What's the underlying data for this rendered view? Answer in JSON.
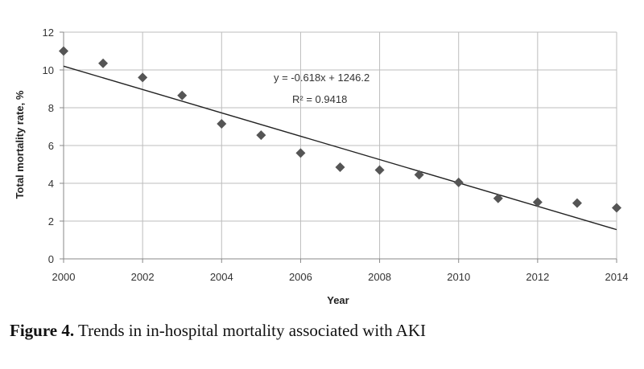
{
  "chart_data": {
    "type": "scatter",
    "title": "",
    "xlabel": "Year",
    "ylabel": "Total mortality rate, %",
    "xlim": [
      2000,
      2014
    ],
    "ylim": [
      0,
      12
    ],
    "x_ticks": [
      2000,
      2002,
      2004,
      2006,
      2008,
      2010,
      2012,
      2014
    ],
    "y_ticks": [
      0,
      2,
      4,
      6,
      8,
      10,
      12
    ],
    "grid": true,
    "series": [
      {
        "x": [
          2000,
          2001,
          2002,
          2003,
          2004,
          2005,
          2006,
          2007,
          2008,
          2009,
          2010,
          2011,
          2012,
          2013,
          2014
        ],
        "y": [
          11.0,
          10.35,
          9.6,
          8.65,
          7.15,
          6.55,
          5.6,
          4.85,
          4.7,
          4.45,
          4.05,
          3.2,
          3.0,
          2.95,
          2.7
        ],
        "marker": "diamond",
        "color": "#555555"
      }
    ],
    "trendline": {
      "slope": -0.618,
      "intercept": 1246.2,
      "equation_label": "y = -0.618x + 1246.2",
      "r2_label": "R² = 0.9418",
      "color": "#222222"
    }
  },
  "caption": {
    "label": "Figure 4.",
    "text": " Trends in in-hospital mortality associated with AKI"
  }
}
